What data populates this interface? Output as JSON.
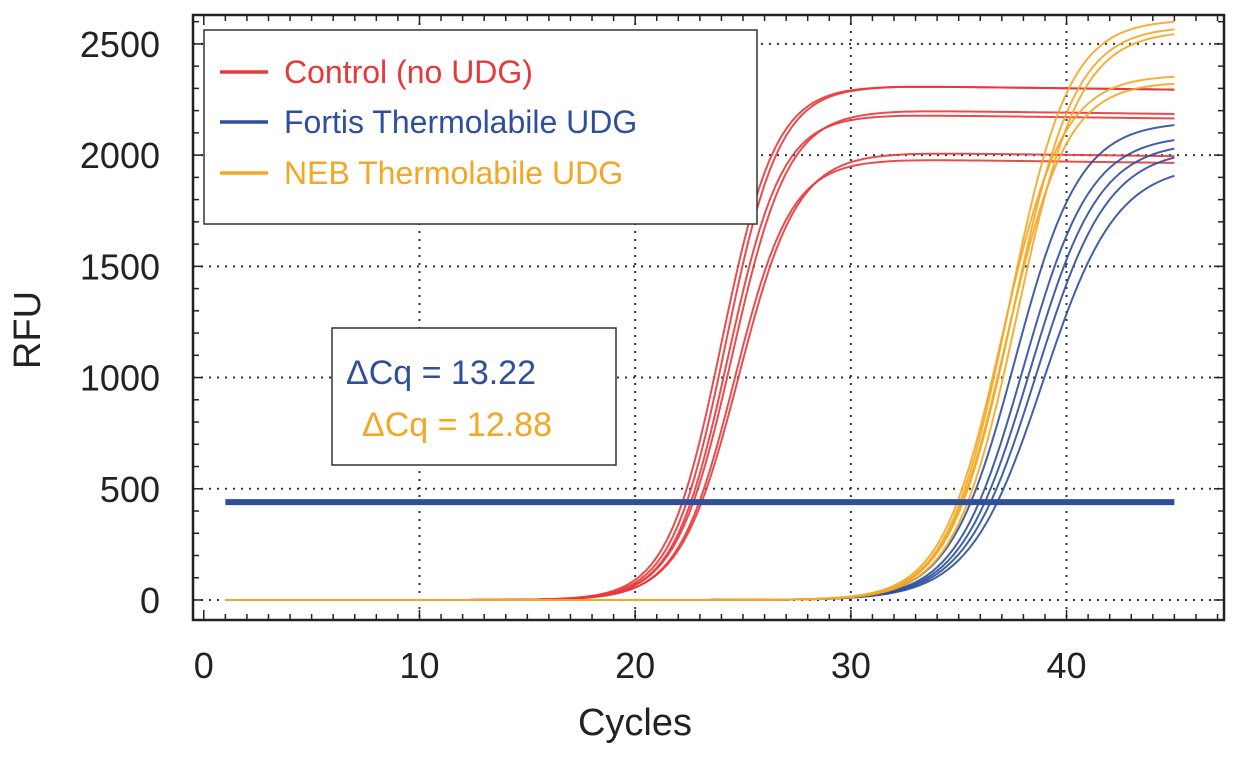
{
  "chart_data": {
    "type": "line",
    "xlabel": "Cycles",
    "ylabel": "RFU",
    "xlim": [
      -0.5,
      47.3
    ],
    "ylim": [
      -90,
      2630
    ],
    "xticks": [
      0,
      10,
      20,
      30,
      40
    ],
    "yticks": [
      0,
      500,
      1000,
      1500,
      2000,
      2500
    ],
    "grid": true,
    "legend_position": "top-left",
    "legend": [
      {
        "label": "Control (no UDG)",
        "color": "#e8383a"
      },
      {
        "label": "Fortis Thermolabile UDG",
        "color": "#2e4f9c"
      },
      {
        "label": "NEB Thermolabile UDG",
        "color": "#f5a623"
      }
    ],
    "threshold": {
      "value": 440,
      "x_start": 1,
      "x_end": 45,
      "color": "#2e4f9c"
    },
    "annotations": [
      {
        "text": "ΔCq = 13.22",
        "color": "#2e4f9c"
      },
      {
        "text": "ΔCq = 12.88",
        "color": "#f5a623"
      }
    ],
    "series": [
      {
        "name": "Control (no UDG)",
        "color": "#e8383a",
        "curves": [
          {
            "midpoint": 24.0,
            "slope": 1.25,
            "plateau": 2310
          },
          {
            "midpoint": 24.2,
            "slope": 1.25,
            "plateau": 2310
          },
          {
            "midpoint": 24.5,
            "slope": 1.3,
            "plateau": 2200
          },
          {
            "midpoint": 24.3,
            "slope": 1.25,
            "plateau": 2180
          },
          {
            "midpoint": 24.8,
            "slope": 1.35,
            "plateau": 2010
          },
          {
            "midpoint": 24.6,
            "slope": 1.3,
            "plateau": 1980
          }
        ]
      },
      {
        "name": "Fortis Thermolabile UDG",
        "color": "#2e4f9c",
        "curves": [
          {
            "midpoint": 37.6,
            "slope": 1.5,
            "plateau": 2150
          },
          {
            "midpoint": 38.0,
            "slope": 1.55,
            "plateau": 2090
          },
          {
            "midpoint": 38.3,
            "slope": 1.6,
            "plateau": 2060
          },
          {
            "midpoint": 38.6,
            "slope": 1.65,
            "plateau": 2030
          },
          {
            "midpoint": 38.9,
            "slope": 1.7,
            "plateau": 1960
          }
        ]
      },
      {
        "name": "NEB Thermolabile UDG",
        "color": "#f5a623",
        "curves": [
          {
            "midpoint": 37.3,
            "slope": 1.4,
            "plateau": 2610
          },
          {
            "midpoint": 37.5,
            "slope": 1.45,
            "plateau": 2580
          },
          {
            "midpoint": 37.7,
            "slope": 1.45,
            "plateau": 2560
          },
          {
            "midpoint": 37.0,
            "slope": 1.4,
            "plateau": 2360
          },
          {
            "midpoint": 37.2,
            "slope": 1.4,
            "plateau": 2330
          }
        ]
      }
    ]
  }
}
